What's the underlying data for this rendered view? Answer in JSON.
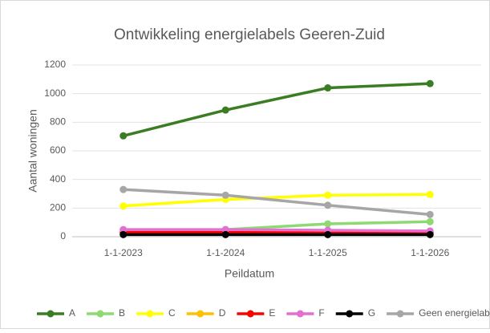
{
  "chart_data": {
    "type": "line",
    "title": "Ontwikkeling energielabels Geeren-Zuid",
    "x_label": "Peildatum",
    "y_label": "Aantal woningen",
    "categories": [
      "1-1-2023",
      "1-1-2024",
      "1-1-2025",
      "1-1-2026"
    ],
    "series": [
      {
        "name": "A",
        "color": "#3a7d22",
        "values": [
          705,
          885,
          1040,
          1070
        ]
      },
      {
        "name": "B",
        "color": "#8ed973",
        "values": [
          45,
          50,
          90,
          105
        ]
      },
      {
        "name": "C",
        "color": "#ffff00",
        "values": [
          215,
          260,
          290,
          295
        ]
      },
      {
        "name": "D",
        "color": "#ffc000",
        "values": [
          25,
          25,
          25,
          25
        ]
      },
      {
        "name": "E",
        "color": "#ff0000",
        "values": [
          30,
          30,
          30,
          30
        ]
      },
      {
        "name": "F",
        "color": "#e36fd3",
        "values": [
          50,
          50,
          45,
          40
        ]
      },
      {
        "name": "G",
        "color": "#000000",
        "values": [
          15,
          15,
          15,
          15
        ]
      },
      {
        "name": "Geen energielabel",
        "color": "#a6a6a6",
        "values": [
          330,
          290,
          220,
          155
        ]
      }
    ],
    "ylim": [
      0,
      1200
    ],
    "yticks": [
      0,
      200,
      400,
      600,
      800,
      1000,
      1200
    ],
    "grid": true,
    "legend": "bottom"
  }
}
